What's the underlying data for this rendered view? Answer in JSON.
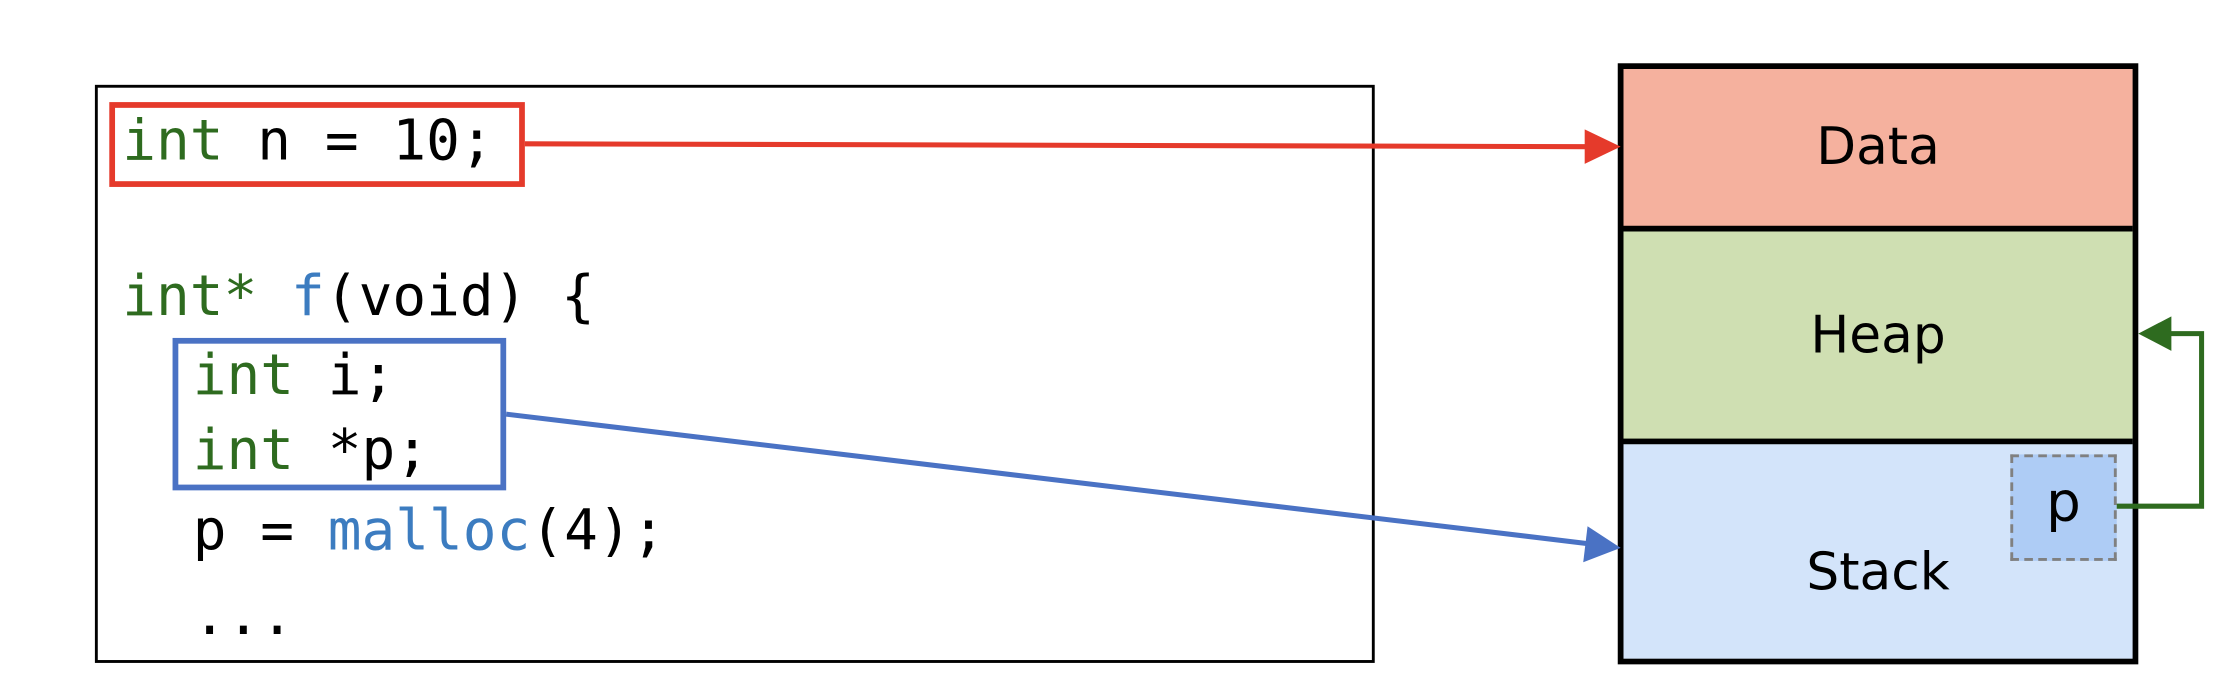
{
  "code": {
    "line1": {
      "type": "int",
      "rest": " n = 10;"
    },
    "line2": {
      "type": "int*",
      "fname": "f",
      "rest": "(void) {"
    },
    "line3": {
      "type": "int",
      "rest": " i;"
    },
    "line4": {
      "type": "int",
      "rest": " *p;"
    },
    "line5": {
      "lhs": "p = ",
      "fname": "malloc",
      "rest": "(4);"
    },
    "line6": {
      "text": "..."
    }
  },
  "memory": {
    "data_label": "Data",
    "heap_label": "Heap",
    "stack_label": "Stack",
    "pointer_label": "p"
  },
  "colors": {
    "keyword": "#2E6B1F",
    "function": "#3C7CC0",
    "global_highlight": "#E53A2B",
    "local_highlight": "#4A72C4",
    "heap_pointer": "#2E6B1F",
    "data_segment": "#F5B19E",
    "heap_segment": "#CFDFB2",
    "stack_segment": "#D3E4FA",
    "pointer_box": "#AECCF5"
  }
}
